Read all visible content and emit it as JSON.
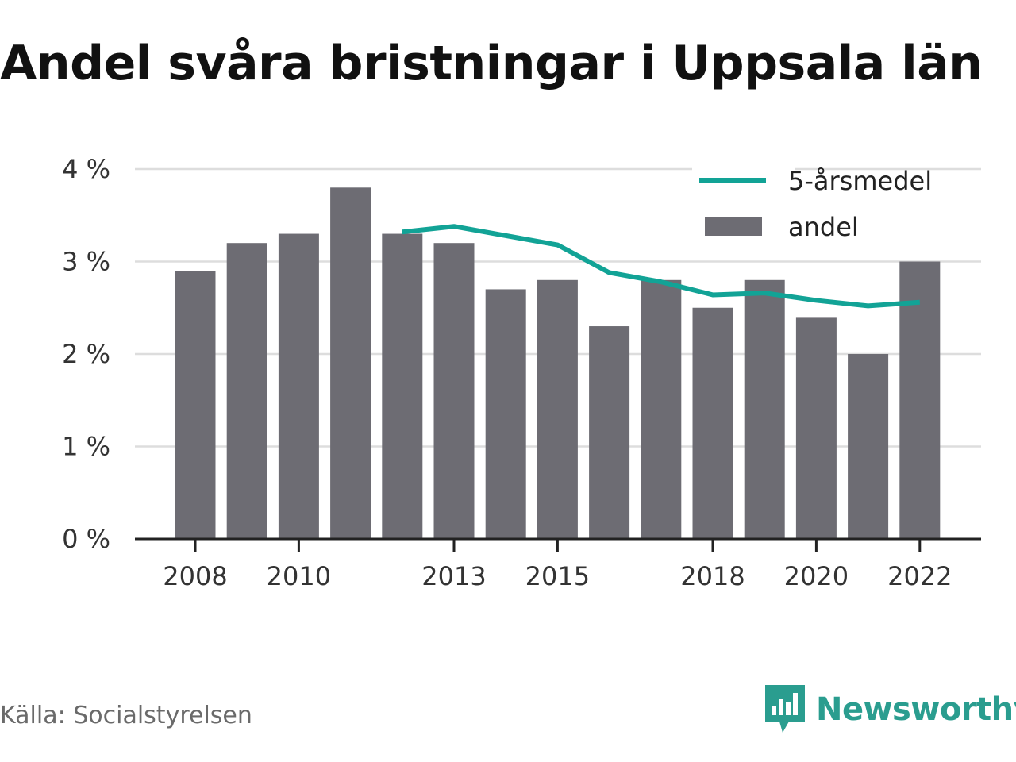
{
  "title": "Andel svåra bristningar i Uppsala län",
  "source": "Källa: Socialstyrelsen",
  "brand": {
    "name": "Newsworthy",
    "icon": "newsworthy-logo-icon",
    "color": "#2a9d8f"
  },
  "colors": {
    "bar": "#6d6c73",
    "line": "#12a396",
    "grid": "#dddddd",
    "axis": "#222222"
  },
  "chart_data": {
    "type": "bar",
    "title": "Andel svåra bristningar i Uppsala län",
    "x": [
      2008,
      2009,
      2010,
      2011,
      2012,
      2013,
      2014,
      2015,
      2016,
      2017,
      2018,
      2019,
      2020,
      2021,
      2022
    ],
    "x_tick_labels": [
      "2008",
      "2010",
      "2013",
      "2015",
      "2018",
      "2020",
      "2022"
    ],
    "y_tick_labels": [
      "0 %",
      "1 %",
      "2 %",
      "3 %",
      "4 %"
    ],
    "ylim": [
      0,
      4
    ],
    "grid": true,
    "legend": {
      "placement": "top-right"
    },
    "series": [
      {
        "name": "andel",
        "type": "bar",
        "color": "#6d6c73",
        "values": [
          2.9,
          3.2,
          3.3,
          3.8,
          3.3,
          3.2,
          2.7,
          2.8,
          2.3,
          2.8,
          2.5,
          2.8,
          2.4,
          2.0,
          3.0
        ]
      },
      {
        "name": "5-årsmedel",
        "type": "line",
        "color": "#12a396",
        "values": [
          null,
          null,
          null,
          null,
          3.32,
          3.38,
          3.28,
          3.18,
          2.88,
          2.78,
          2.64,
          2.66,
          2.58,
          2.52,
          2.56
        ]
      }
    ]
  }
}
